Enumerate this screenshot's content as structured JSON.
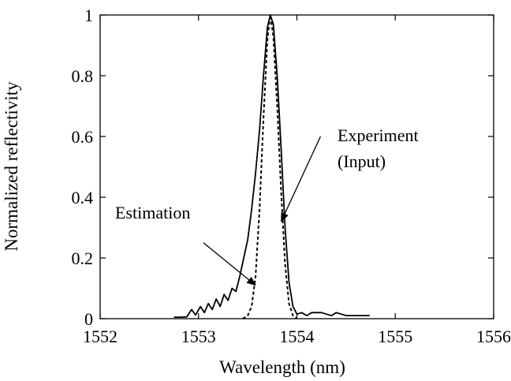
{
  "chart_data": {
    "type": "line",
    "xlabel": "Wavelength (nm)",
    "ylabel": "Normalized reflectivity",
    "xlim": [
      1552,
      1556
    ],
    "ylim": [
      0,
      1
    ],
    "xticks": [
      1552,
      1553,
      1554,
      1555,
      1556
    ],
    "yticks": [
      0,
      0.2,
      0.4,
      0.6,
      0.8,
      1
    ],
    "xtick_labels": [
      "1552",
      "1553",
      "1554",
      "1555",
      "1556"
    ],
    "ytick_labels": [
      "0",
      "0.2",
      "0.4",
      "0.6",
      "0.8",
      "1"
    ],
    "grid": false,
    "series": [
      {
        "style": "solid",
        "color": "#000000",
        "points": [
          [
            1552.75,
            0.005
          ],
          [
            1552.82,
            0.005
          ],
          [
            1552.88,
            0.006
          ],
          [
            1552.93,
            0.03
          ],
          [
            1552.97,
            0.012
          ],
          [
            1553.02,
            0.04
          ],
          [
            1553.06,
            0.02
          ],
          [
            1553.1,
            0.05
          ],
          [
            1553.14,
            0.03
          ],
          [
            1553.18,
            0.065
          ],
          [
            1553.22,
            0.04
          ],
          [
            1553.26,
            0.08
          ],
          [
            1553.3,
            0.06
          ],
          [
            1553.34,
            0.1
          ],
          [
            1553.38,
            0.09
          ],
          [
            1553.42,
            0.14
          ],
          [
            1553.46,
            0.2
          ],
          [
            1553.5,
            0.26
          ],
          [
            1553.54,
            0.36
          ],
          [
            1553.58,
            0.48
          ],
          [
            1553.62,
            0.62
          ],
          [
            1553.66,
            0.8
          ],
          [
            1553.7,
            0.96
          ],
          [
            1553.73,
            1.0
          ],
          [
            1553.76,
            0.97
          ],
          [
            1553.8,
            0.8
          ],
          [
            1553.84,
            0.56
          ],
          [
            1553.88,
            0.3
          ],
          [
            1553.92,
            0.12
          ],
          [
            1553.96,
            0.04
          ],
          [
            1554.0,
            0.015
          ],
          [
            1554.05,
            0.02
          ],
          [
            1554.1,
            0.01
          ],
          [
            1554.15,
            0.02
          ],
          [
            1554.2,
            0.02
          ],
          [
            1554.25,
            0.02
          ],
          [
            1554.3,
            0.015
          ],
          [
            1554.35,
            0.01
          ],
          [
            1554.4,
            0.02
          ],
          [
            1554.45,
            0.015
          ],
          [
            1554.5,
            0.01
          ],
          [
            1554.55,
            0.01
          ],
          [
            1554.6,
            0.01
          ],
          [
            1554.65,
            0.01
          ],
          [
            1554.7,
            0.01
          ],
          [
            1554.74,
            0.01
          ]
        ]
      },
      {
        "style": "dashed",
        "color": "#000000",
        "points": [
          [
            1553.45,
            0.0
          ],
          [
            1553.5,
            0.01
          ],
          [
            1553.54,
            0.04
          ],
          [
            1553.58,
            0.14
          ],
          [
            1553.62,
            0.36
          ],
          [
            1553.66,
            0.66
          ],
          [
            1553.7,
            0.92
          ],
          [
            1553.73,
            1.0
          ],
          [
            1553.76,
            0.93
          ],
          [
            1553.8,
            0.7
          ],
          [
            1553.84,
            0.42
          ],
          [
            1553.88,
            0.18
          ],
          [
            1553.92,
            0.05
          ],
          [
            1553.96,
            0.01
          ],
          [
            1554.0,
            0.0
          ]
        ]
      }
    ],
    "annotations": [
      {
        "text": "Estimation",
        "arrow_from": [
          1553.05,
          0.25
        ],
        "arrow_to": [
          1553.58,
          0.11
        ]
      },
      {
        "text": "Experiment",
        "text_line2": "(Input)",
        "arrow_from": [
          1554.24,
          0.6
        ],
        "arrow_to": [
          1553.84,
          0.32
        ]
      }
    ]
  }
}
